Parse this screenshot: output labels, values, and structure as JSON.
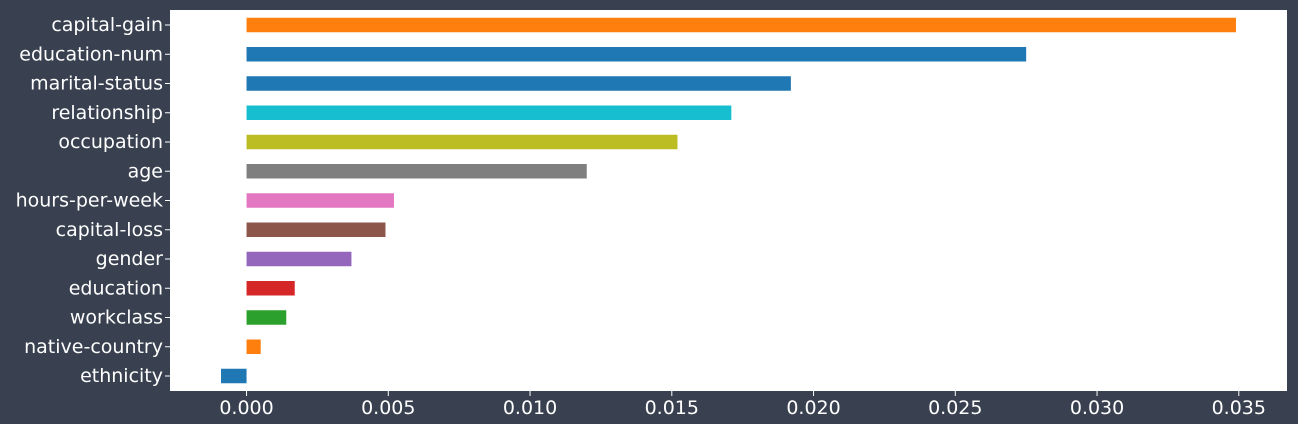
{
  "chart_data": {
    "type": "bar",
    "orientation": "horizontal",
    "title": "",
    "xlabel": "",
    "ylabel": "",
    "categories": [
      "capital-gain",
      "education-num",
      "marital-status",
      "relationship",
      "occupation",
      "age",
      "hours-per-week",
      "capital-loss",
      "gender",
      "education",
      "workclass",
      "native-country",
      "ethnicity"
    ],
    "values": [
      0.0349,
      0.0275,
      0.0192,
      0.0171,
      0.0152,
      0.012,
      0.0052,
      0.0049,
      0.0037,
      0.0017,
      0.0014,
      0.0005,
      -0.0009
    ],
    "colors": [
      "#ff7f0e",
      "#1f77b4",
      "#1f77b4",
      "#17becf",
      "#bcbd22",
      "#7f7f7f",
      "#e377c2",
      "#8c564b",
      "#9467bd",
      "#d62728",
      "#2ca02c",
      "#ff7f0e",
      "#1f77b4"
    ],
    "xlim": [
      -0.0027,
      0.0367
    ],
    "xticks": [
      0.0,
      0.005,
      0.01,
      0.015,
      0.02,
      0.025,
      0.03,
      0.035
    ],
    "xtick_labels": [
      "0.000",
      "0.005",
      "0.010",
      "0.015",
      "0.020",
      "0.025",
      "0.030",
      "0.035"
    ],
    "grid": false,
    "legend": "none",
    "background": "#394150",
    "plot_background": "#ffffff"
  }
}
